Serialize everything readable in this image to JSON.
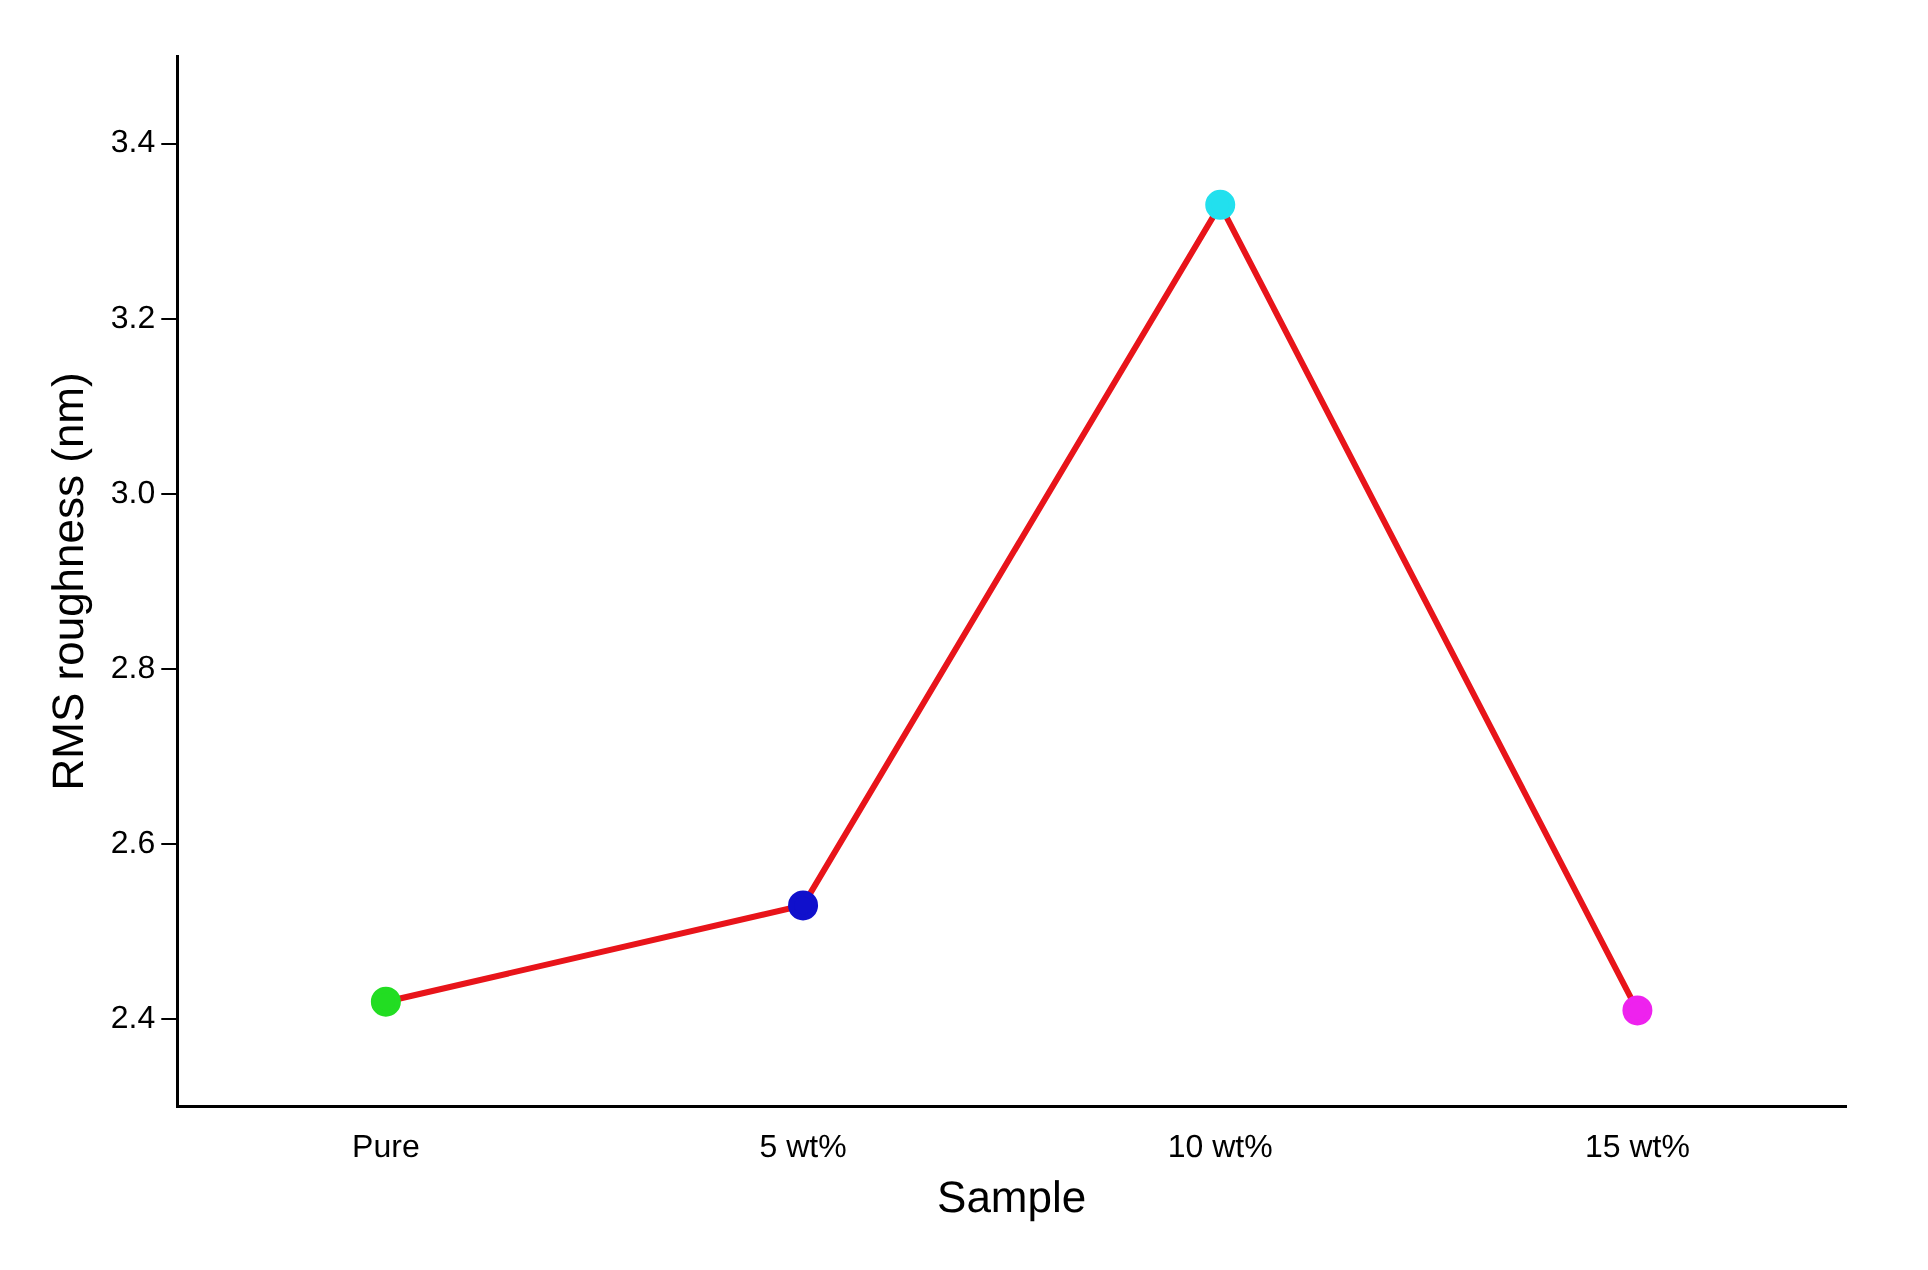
{
  "chart_data": {
    "type": "line",
    "xlabel": "Sample",
    "ylabel": "RMS roughness (nm)",
    "categories": [
      "Pure",
      "5 wt%",
      "10 wt%",
      "15 wt%"
    ],
    "series": [
      {
        "color": "#e8141a",
        "colors": [
          "#22dd22",
          "#1010cc",
          "#22e0ee",
          "#ee22ee"
        ],
        "values": [
          2.42,
          2.53,
          3.33,
          2.41
        ]
      }
    ],
    "ylim": [
      2.3,
      3.5
    ],
    "yticks": [
      2.4,
      2.6,
      2.8,
      {
        "value": 3,
        "label": "3.0"
      },
      3.2,
      3.4
    ],
    "grid": false,
    "legend": false,
    "marker": "circle",
    "line_style": "solid"
  }
}
